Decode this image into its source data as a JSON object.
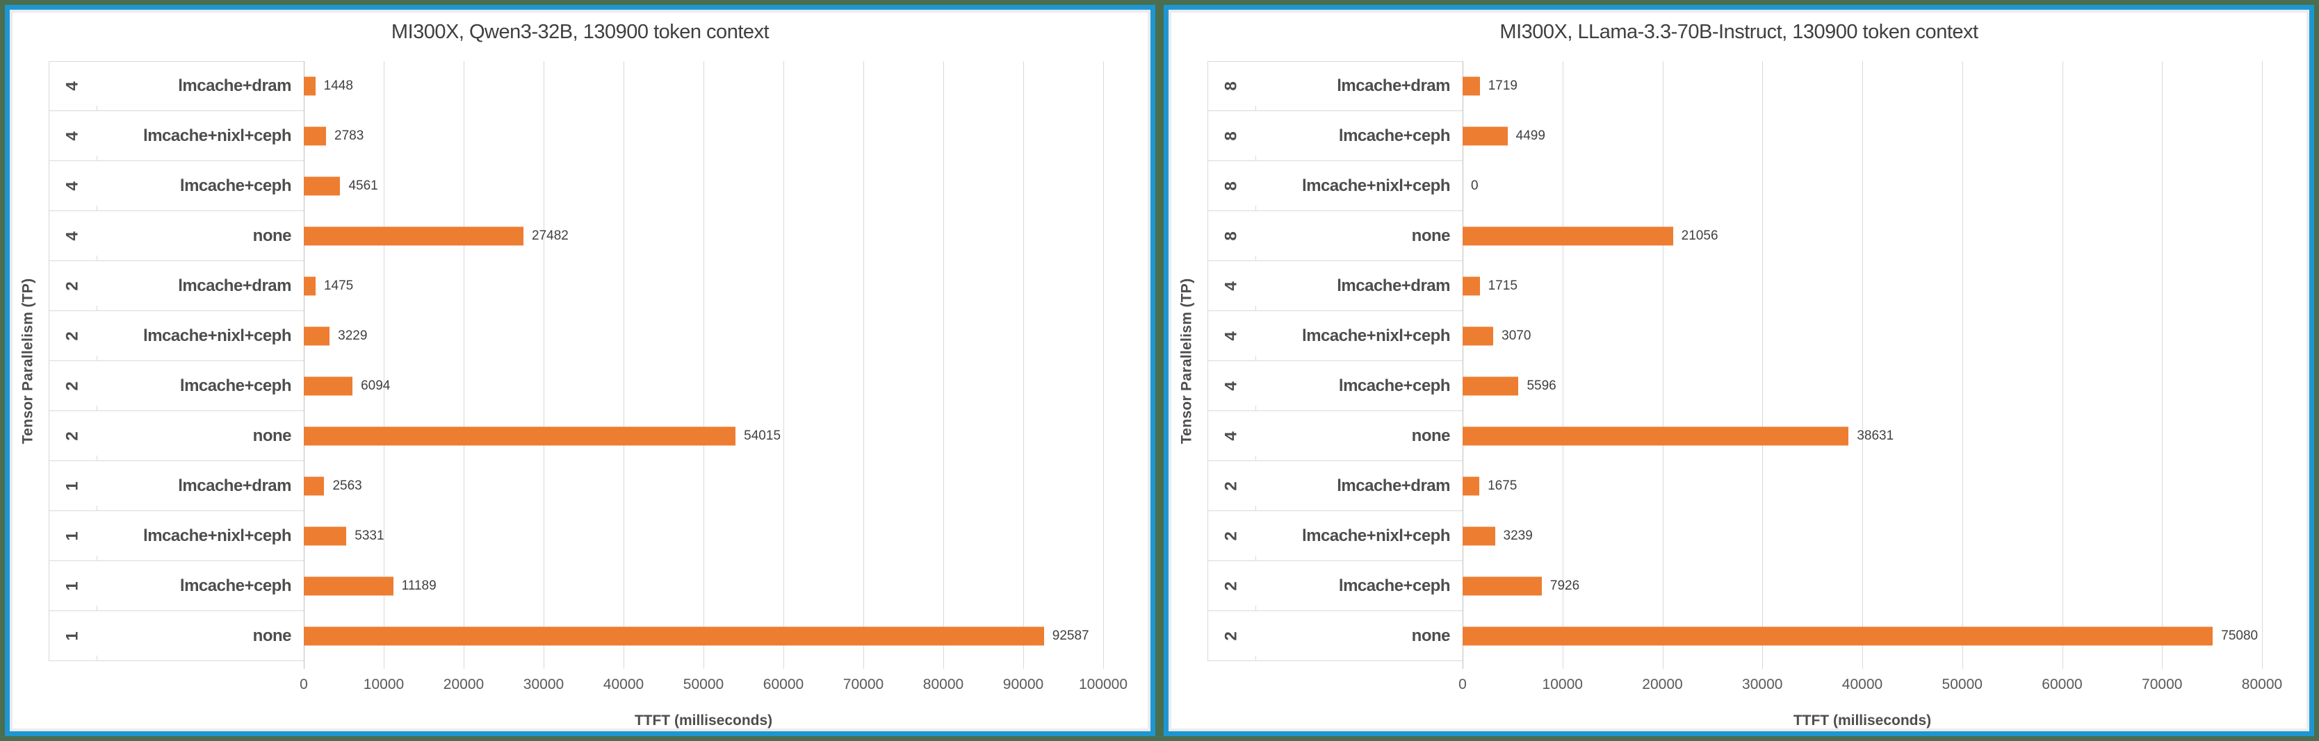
{
  "page": {
    "background_color": "#4a6e4f",
    "panel_border_color": "#1e96d2",
    "bar_color": "#ED7D31",
    "gridline_color": "#d9d9d9"
  },
  "chart_data": [
    {
      "type": "bar",
      "orientation": "horizontal",
      "title": "MI300X, Qwen3-32B, 130900 token context",
      "xlabel": "TTFT (milliseconds)",
      "ylabel": "Tensor Parallelism (TP)",
      "xlim": [
        0,
        100000
      ],
      "xtick_step": 10000,
      "xticks": [
        0,
        10000,
        20000,
        30000,
        40000,
        50000,
        60000,
        70000,
        80000,
        90000,
        100000
      ],
      "grid": true,
      "bar_color": "#ED7D31",
      "rows": [
        {
          "tp": "4",
          "config": "lmcache+dram",
          "value": 1448
        },
        {
          "tp": "4",
          "config": "lmcache+nixl+ceph",
          "value": 2783
        },
        {
          "tp": "4",
          "config": "lmcache+ceph",
          "value": 4561
        },
        {
          "tp": "4",
          "config": "none",
          "value": 27482
        },
        {
          "tp": "2",
          "config": "lmcache+dram",
          "value": 1475
        },
        {
          "tp": "2",
          "config": "lmcache+nixl+ceph",
          "value": 3229
        },
        {
          "tp": "2",
          "config": "lmcache+ceph",
          "value": 6094
        },
        {
          "tp": "2",
          "config": "none",
          "value": 54015
        },
        {
          "tp": "1",
          "config": "lmcache+dram",
          "value": 2563
        },
        {
          "tp": "1",
          "config": "lmcache+nixl+ceph",
          "value": 5331
        },
        {
          "tp": "1",
          "config": "lmcache+ceph",
          "value": 11189
        },
        {
          "tp": "1",
          "config": "none",
          "value": 92587
        }
      ]
    },
    {
      "type": "bar",
      "orientation": "horizontal",
      "title": "MI300X, LLama-3.3-70B-Instruct, 130900 token context",
      "xlabel": "TTFT (milliseconds)",
      "ylabel": "Tensor Parallelism (TP)",
      "xlim": [
        0,
        80000
      ],
      "xtick_step": 10000,
      "xticks": [
        0,
        10000,
        20000,
        30000,
        40000,
        50000,
        60000,
        70000,
        80000
      ],
      "grid": true,
      "bar_color": "#ED7D31",
      "rows": [
        {
          "tp": "8",
          "config": "lmcache+dram",
          "value": 1719
        },
        {
          "tp": "8",
          "config": "lmcache+ceph",
          "value": 4499
        },
        {
          "tp": "8",
          "config": "lmcache+nixl+ceph",
          "value": 0
        },
        {
          "tp": "8",
          "config": "none",
          "value": 21056
        },
        {
          "tp": "4",
          "config": "lmcache+dram",
          "value": 1715
        },
        {
          "tp": "4",
          "config": "lmcache+nixl+ceph",
          "value": 3070
        },
        {
          "tp": "4",
          "config": "lmcache+ceph",
          "value": 5596
        },
        {
          "tp": "4",
          "config": "none",
          "value": 38631
        },
        {
          "tp": "2",
          "config": "lmcache+dram",
          "value": 1675
        },
        {
          "tp": "2",
          "config": "lmcache+nixl+ceph",
          "value": 3239
        },
        {
          "tp": "2",
          "config": "lmcache+ceph",
          "value": 7926
        },
        {
          "tp": "2",
          "config": "none",
          "value": 75080
        }
      ]
    }
  ]
}
